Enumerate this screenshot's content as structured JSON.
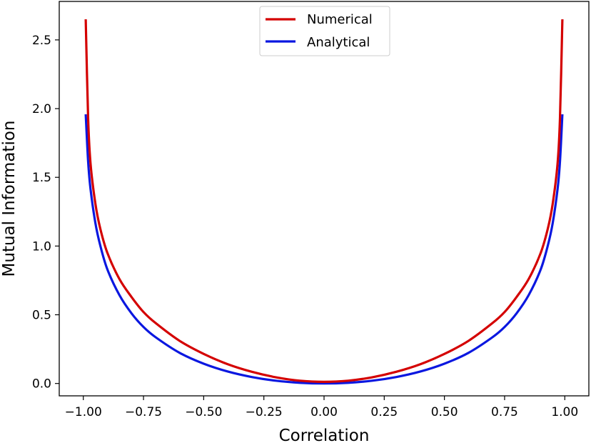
{
  "chart_data": {
    "type": "line",
    "title": "",
    "xlabel": "Correlation",
    "ylabel": "Mutual Information",
    "xlim": [
      -1.1,
      1.1
    ],
    "ylim": [
      -0.09,
      2.78
    ],
    "xticks": [
      -1.0,
      -0.75,
      -0.5,
      -0.25,
      0.0,
      0.25,
      0.5,
      0.75,
      1.0
    ],
    "xtick_labels": [
      "−1.00",
      "−0.75",
      "−0.50",
      "−0.25",
      "0.00",
      "0.25",
      "0.50",
      "0.75",
      "1.00"
    ],
    "yticks": [
      0.0,
      0.5,
      1.0,
      1.5,
      2.0,
      2.5
    ],
    "ytick_labels": [
      "0.0",
      "0.5",
      "1.0",
      "1.5",
      "2.0",
      "2.5"
    ],
    "grid": false,
    "legend": "upper center",
    "series": [
      {
        "name": "Numerical",
        "color": "#d40000",
        "x": [
          -0.99,
          -0.98,
          -0.97,
          -0.95,
          -0.93,
          -0.9,
          -0.85,
          -0.8,
          -0.75,
          -0.7,
          -0.6,
          -0.5,
          -0.4,
          -0.3,
          -0.2,
          -0.1,
          0.0,
          0.1,
          0.2,
          0.3,
          0.4,
          0.5,
          0.6,
          0.7,
          0.75,
          0.8,
          0.85,
          0.9,
          0.93,
          0.95,
          0.97,
          0.98,
          0.99
        ],
        "y": [
          2.65,
          1.93,
          1.6,
          1.31,
          1.13,
          0.95,
          0.76,
          0.63,
          0.52,
          0.44,
          0.31,
          0.215,
          0.14,
          0.085,
          0.045,
          0.02,
          0.012,
          0.02,
          0.045,
          0.085,
          0.14,
          0.215,
          0.31,
          0.44,
          0.52,
          0.63,
          0.76,
          0.95,
          1.13,
          1.31,
          1.6,
          1.93,
          2.65
        ]
      },
      {
        "name": "Analytical",
        "color": "#0a17e0",
        "x": [
          -0.99,
          -0.98,
          -0.97,
          -0.95,
          -0.93,
          -0.9,
          -0.85,
          -0.8,
          -0.75,
          -0.7,
          -0.6,
          -0.5,
          -0.4,
          -0.3,
          -0.2,
          -0.1,
          0.0,
          0.1,
          0.2,
          0.3,
          0.4,
          0.5,
          0.6,
          0.7,
          0.75,
          0.8,
          0.85,
          0.9,
          0.93,
          0.95,
          0.97,
          0.98,
          0.99
        ],
        "y": [
          1.959,
          1.615,
          1.414,
          1.169,
          1.007,
          0.83,
          0.643,
          0.511,
          0.411,
          0.337,
          0.223,
          0.144,
          0.087,
          0.047,
          0.02,
          0.005,
          0.0,
          0.005,
          0.02,
          0.047,
          0.087,
          0.144,
          0.223,
          0.337,
          0.411,
          0.511,
          0.643,
          0.83,
          1.007,
          1.169,
          1.414,
          1.615,
          1.959
        ]
      }
    ]
  }
}
